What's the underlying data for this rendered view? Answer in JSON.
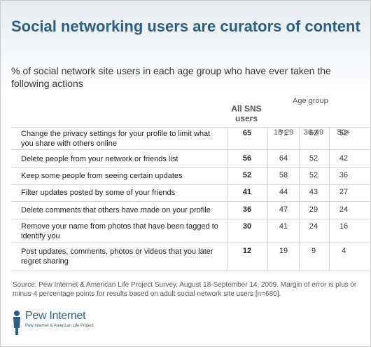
{
  "title": "Social networking users are curators of content",
  "subtitle": "% of social network site users in each age group who have ever taken the following actions",
  "age_group_label": "Age group",
  "all_users_label": "All SNS users",
  "columns": [
    "18-29",
    "30-49",
    "50+"
  ],
  "chart_data": {
    "type": "table",
    "title": "Social networking users are curators of content",
    "subtitle": "% of social network site users in each age group who have ever taken the following actions",
    "columns": [
      "All SNS users",
      "18-29",
      "30-49",
      "50+"
    ],
    "rows": [
      {
        "label": "Change the privacy settings for your profile to limit what you share with others online",
        "all": "65",
        "values": [
          "71",
          "62",
          "52"
        ]
      },
      {
        "label": "Delete people from your network or friends list",
        "all": "56",
        "values": [
          "64",
          "52",
          "42"
        ]
      },
      {
        "label": "Keep some people from seeing certain updates",
        "all": "52",
        "values": [
          "58",
          "52",
          "36"
        ]
      },
      {
        "label": "Filter updates posted by some of your friends",
        "all": "41",
        "values": [
          "44",
          "43",
          "27"
        ]
      },
      {
        "label": "Delete comments that others have made on your profile",
        "all": "36",
        "values": [
          "47",
          "29",
          "24"
        ]
      },
      {
        "label": "Remove your name from photos that have been tagged to identify you",
        "all": "30",
        "values": [
          "41",
          "24",
          "16"
        ]
      },
      {
        "label": "Post updates, comments, photos or videos that you later regret sharing",
        "all": "12",
        "values": [
          "19",
          "9",
          "4"
        ]
      }
    ]
  },
  "source": "Source: Pew Internet & American Life Project Survey, August 18-September 14, 2009. Margin of error is plus or minus 4 percentage points for results based on adult social network site users [n=680].",
  "logo": {
    "name": "Pew Internet",
    "tagline": "Pew Internet & American Life Project",
    "icon": "pew-person-icon",
    "color": "#2b5f86"
  }
}
